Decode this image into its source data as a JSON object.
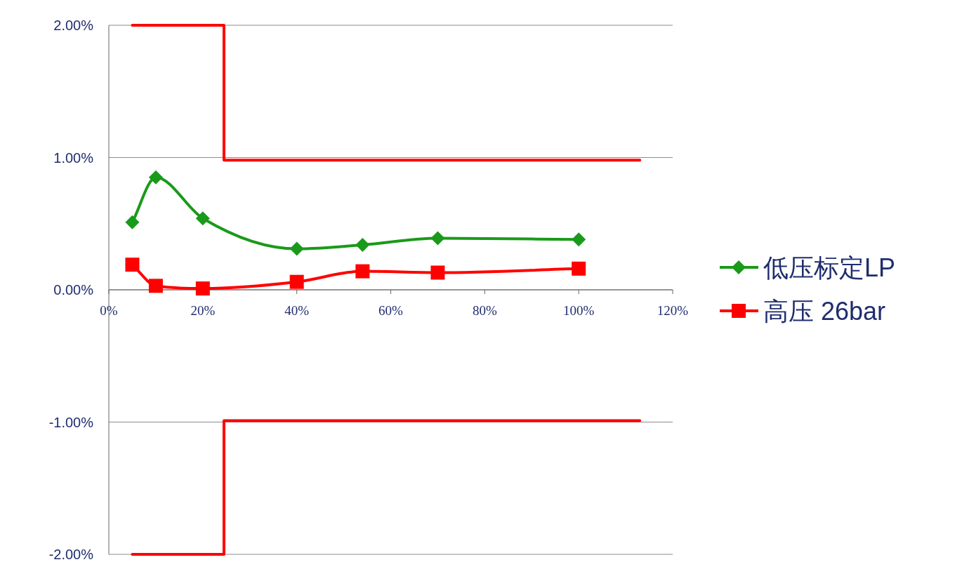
{
  "chart_data": {
    "type": "line",
    "xlim": [
      0,
      120
    ],
    "xticks": [
      {
        "value": 0,
        "label": "0%"
      },
      {
        "value": 20,
        "label": "20%"
      },
      {
        "value": 40,
        "label": "40%"
      },
      {
        "value": 60,
        "label": "60%"
      },
      {
        "value": 80,
        "label": "80%"
      },
      {
        "value": 100,
        "label": "100%"
      },
      {
        "value": 120,
        "label": "120%"
      }
    ],
    "ylim": [
      -2,
      2
    ],
    "yticks": [
      {
        "value": -2,
        "label": "-2.00%"
      },
      {
        "value": -1,
        "label": "-1.00%"
      },
      {
        "value": 0,
        "label": "0.00%"
      },
      {
        "value": 1,
        "label": "1.00%"
      },
      {
        "value": 2,
        "label": "2.00%"
      }
    ],
    "grid": "y",
    "legend": "right",
    "series": [
      {
        "name": "低压标定LP",
        "color": "#1a9a1a",
        "marker": "diamond",
        "x": [
          5,
          10,
          20,
          40,
          54,
          70,
          100
        ],
        "values": [
          0.51,
          0.85,
          0.54,
          0.31,
          0.34,
          0.39,
          0.38
        ]
      },
      {
        "name": "高压 26bar",
        "color": "#ff0000",
        "marker": "square",
        "x": [
          5,
          10,
          20,
          40,
          54,
          70,
          100
        ],
        "values": [
          0.19,
          0.03,
          0.01,
          0.06,
          0.14,
          0.13,
          0.16
        ]
      },
      {
        "color": "#ff0000",
        "marker": "none",
        "x": [
          5,
          24.5,
          24.5,
          113
        ],
        "values": [
          2,
          2,
          0.98,
          0.98
        ]
      },
      {
        "color": "#ff0000",
        "marker": "none",
        "x": [
          5,
          24.5,
          24.5,
          113
        ],
        "values": [
          -2,
          -2,
          -0.99,
          -0.99
        ]
      }
    ]
  }
}
